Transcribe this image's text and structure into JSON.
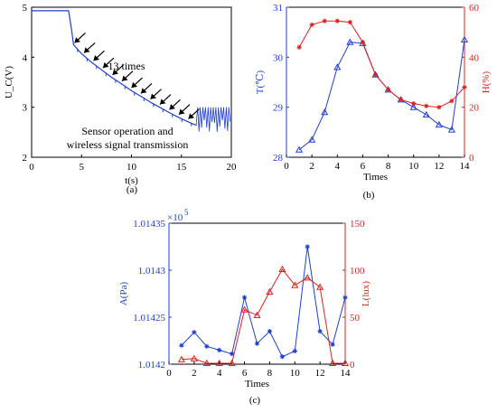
{
  "chart_data": [
    {
      "type": "line",
      "caption": "(a)",
      "xlabel": "t(s)",
      "ylabel": "U_C(V)",
      "xlim": [
        0,
        20
      ],
      "ylim": [
        2,
        5
      ],
      "xticks": [
        0,
        5,
        10,
        15,
        20
      ],
      "yticks": [
        2,
        3,
        4,
        5
      ],
      "annotations": [
        "13 times",
        "Sensor operation and",
        "wireless signal transmission"
      ],
      "series": [
        {
          "color": "#1f3fd1",
          "x": [
            0,
            1,
            2,
            3,
            3.7,
            4.0,
            4.2,
            5,
            6,
            7,
            8,
            9,
            10,
            11,
            12,
            13,
            14,
            15,
            16,
            16.5
          ],
          "y": [
            4.93,
            4.93,
            4.93,
            4.93,
            4.93,
            4.55,
            4.25,
            4.07,
            3.9,
            3.75,
            3.6,
            3.47,
            3.33,
            3.21,
            3.09,
            2.98,
            2.87,
            2.77,
            2.68,
            2.64
          ]
        }
      ],
      "oscillation": {
        "x_start": 16.5,
        "x_end": 20,
        "y_low": 2.5,
        "y_high": 3.0
      }
    },
    {
      "type": "line",
      "caption": "(b)",
      "xlabel": "Times",
      "ylabel_left": "T(℃)",
      "ylabel_right": "H(%)",
      "xlim": [
        0,
        14
      ],
      "ylim_left": [
        28,
        31
      ],
      "ylim_right": [
        0,
        60
      ],
      "xticks": [
        0,
        2,
        4,
        6,
        8,
        10,
        12,
        14
      ],
      "yticks_left": [
        28,
        29,
        30,
        31
      ],
      "yticks_right": [
        0,
        20,
        40,
        60
      ],
      "series": [
        {
          "axis": "left",
          "color": "#1f3fd1",
          "marker": "triangle",
          "x": [
            1,
            2,
            3,
            4,
            5,
            6,
            7,
            8,
            9,
            10,
            11,
            12,
            13,
            14
          ],
          "y": [
            28.15,
            28.35,
            28.9,
            29.8,
            30.3,
            30.28,
            29.65,
            29.35,
            29.15,
            29.0,
            28.85,
            28.65,
            28.55,
            30.35
          ]
        },
        {
          "axis": "right",
          "color": "#e02020",
          "marker": "star",
          "x": [
            1,
            2,
            3,
            4,
            5,
            6,
            7,
            8,
            9,
            10,
            11,
            12,
            13,
            14
          ],
          "y": [
            44,
            53,
            54.5,
            54.5,
            54,
            46,
            33,
            27,
            23,
            21.5,
            20.5,
            20,
            22.5,
            28
          ]
        }
      ]
    },
    {
      "type": "line",
      "caption": "(c)",
      "xlabel": "Times",
      "ylabel_left": "A(Pa)",
      "ylabel_right": "L(lux)",
      "multiplier": "×10",
      "multiplier_exp": "5",
      "xlim": [
        0,
        14
      ],
      "ylim_left": [
        1.0142,
        1.01435
      ],
      "ylim_right": [
        0,
        150
      ],
      "xticks": [
        0,
        2,
        4,
        6,
        8,
        10,
        12,
        14
      ],
      "yticks_left": [
        "1.0142",
        "1.01425",
        "1.0143",
        "1.01435"
      ],
      "yticks_right": [
        0,
        50,
        100,
        150
      ],
      "series": [
        {
          "axis": "left",
          "color": "#1f3fd1",
          "marker": "star",
          "x": [
            1,
            2,
            3,
            4,
            5,
            6,
            7,
            8,
            9,
            10,
            11,
            12,
            13,
            14
          ],
          "y": [
            1.01422,
            1.014234,
            1.014219,
            1.014215,
            1.014211,
            1.014271,
            1.014222,
            1.014235,
            1.014208,
            1.014214,
            1.014325,
            1.014235,
            1.014221,
            1.014271
          ]
        },
        {
          "axis": "right",
          "color": "#e02020",
          "marker": "triangle",
          "x": [
            1,
            2,
            3,
            4,
            5,
            6,
            7,
            8,
            9,
            10,
            11,
            12,
            13,
            14
          ],
          "y": [
            5,
            6,
            1,
            1,
            1,
            58,
            52,
            77,
            101,
            84,
            92,
            82,
            1,
            1
          ]
        }
      ]
    }
  ]
}
